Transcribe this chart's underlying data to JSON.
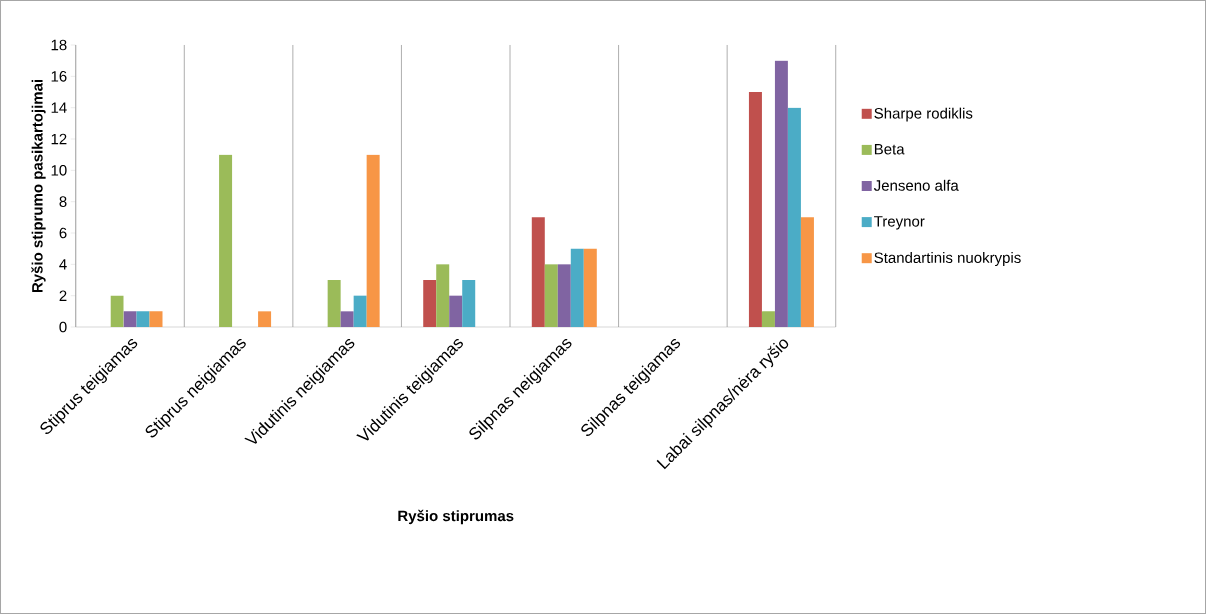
{
  "chart_data": {
    "type": "bar",
    "xlabel": "Ryšio stiprumas",
    "ylabel": "Ryšio stiprumo pasikartojimai",
    "categories": [
      "Stiprus teigiamas",
      "Stiprus neigiamas",
      "Vidutinis neigiamas",
      "Vidutinis teigiamas",
      "Silpnas neigiamas",
      "Silpnas teigiamas",
      "Labai silpnas/nėra ryšio"
    ],
    "series": [
      {
        "name": "Sharpe rodiklis",
        "color": "#c0504d",
        "values": [
          0,
          0,
          0,
          3,
          7,
          0,
          15
        ]
      },
      {
        "name": "Beta",
        "color": "#9bbb59",
        "values": [
          2,
          11,
          3,
          4,
          4,
          0,
          1
        ]
      },
      {
        "name": "Jenseno alfa",
        "color": "#8064a2",
        "values": [
          1,
          0,
          1,
          2,
          4,
          0,
          17
        ]
      },
      {
        "name": "Treynor",
        "color": "#4bacc6",
        "values": [
          1,
          0,
          2,
          3,
          5,
          0,
          14
        ]
      },
      {
        "name": "Standartinis nuokrypis",
        "color": "#f79646",
        "values": [
          1,
          1,
          11,
          0,
          5,
          0,
          7
        ]
      }
    ],
    "ylim": [
      0,
      18
    ],
    "yticks": [
      0,
      2,
      4,
      6,
      8,
      10,
      12,
      14,
      16,
      18
    ],
    "grid": "x",
    "legend": "right"
  }
}
